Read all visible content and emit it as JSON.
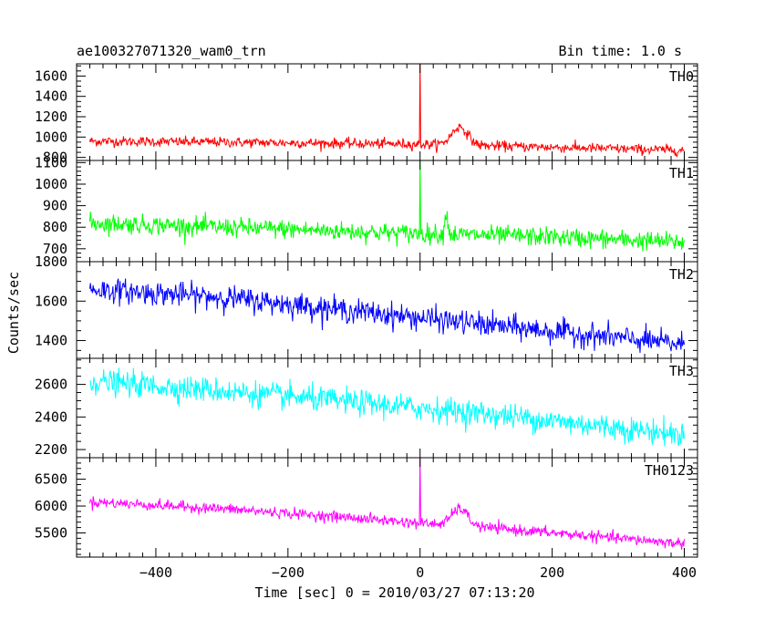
{
  "header": {
    "left": "ae100327071320_wam0_trn",
    "right": "Bin time: 1.0 s"
  },
  "chart_data": {
    "type": "line",
    "xlabel": "Time [sec] 0 = 2010/03/27 07:13:20",
    "ylabel": "Counts/sec",
    "xlim": [
      -520,
      420
    ],
    "x_ticks": [
      -400,
      -200,
      0,
      200,
      400
    ],
    "data_x_range": [
      -500,
      400
    ],
    "panels": [
      {
        "name": "TH0",
        "color": "#ff0000",
        "ylim": [
          770,
          1720
        ],
        "y_ticks": [
          800,
          1000,
          1200,
          1400,
          1600
        ],
        "baseline": [
          [
            -500,
            960
          ],
          [
            -300,
            950
          ],
          [
            0,
            930
          ],
          [
            200,
            900
          ],
          [
            400,
            870
          ]
        ],
        "noise": 45,
        "features": [
          {
            "x": 0,
            "peak": 1750,
            "width": 0.6,
            "type": "spike"
          },
          {
            "x": 60,
            "peak": 1100,
            "width": 12,
            "type": "bump"
          }
        ]
      },
      {
        "name": "TH1",
        "color": "#00ff00",
        "ylim": [
          640,
          1110
        ],
        "y_ticks": [
          700,
          800,
          900,
          1000,
          1100
        ],
        "baseline": [
          [
            -500,
            820
          ],
          [
            -200,
            790
          ],
          [
            0,
            770
          ],
          [
            200,
            755
          ],
          [
            400,
            730
          ]
        ],
        "noise": 40,
        "features": [
          {
            "x": 0,
            "peak": 1120,
            "width": 0.6,
            "type": "spike"
          },
          {
            "x": 40,
            "peak": 880,
            "width": 2,
            "type": "bump"
          }
        ]
      },
      {
        "name": "TH2",
        "color": "#0000ff",
        "ylim": [
          1310,
          1800
        ],
        "y_ticks": [
          1400,
          1600,
          1800
        ],
        "baseline": [
          [
            -500,
            1660
          ],
          [
            -300,
            1620
          ],
          [
            -100,
            1550
          ],
          [
            100,
            1480
          ],
          [
            400,
            1380
          ]
        ],
        "noise": 55,
        "features": []
      },
      {
        "name": "TH3",
        "color": "#00ffff",
        "ylim": [
          2150,
          2760
        ],
        "y_ticks": [
          2200,
          2400,
          2600
        ],
        "baseline": [
          [
            -500,
            2620
          ],
          [
            -300,
            2560
          ],
          [
            -100,
            2490
          ],
          [
            100,
            2420
          ],
          [
            400,
            2290
          ]
        ],
        "noise": 70,
        "features": []
      },
      {
        "name": "TH0123",
        "color": "#ff00ff",
        "ylim": [
          5050,
          6900
        ],
        "y_ticks": [
          5500,
          6000,
          6500
        ],
        "baseline": [
          [
            -500,
            6080
          ],
          [
            -300,
            5950
          ],
          [
            -100,
            5780
          ],
          [
            0,
            5680
          ],
          [
            100,
            5600
          ],
          [
            400,
            5300
          ]
        ],
        "noise": 90,
        "features": [
          {
            "x": 0,
            "peak": 6900,
            "width": 0.6,
            "type": "spike"
          },
          {
            "x": 60,
            "peak": 5950,
            "width": 12,
            "type": "bump"
          }
        ]
      }
    ]
  }
}
